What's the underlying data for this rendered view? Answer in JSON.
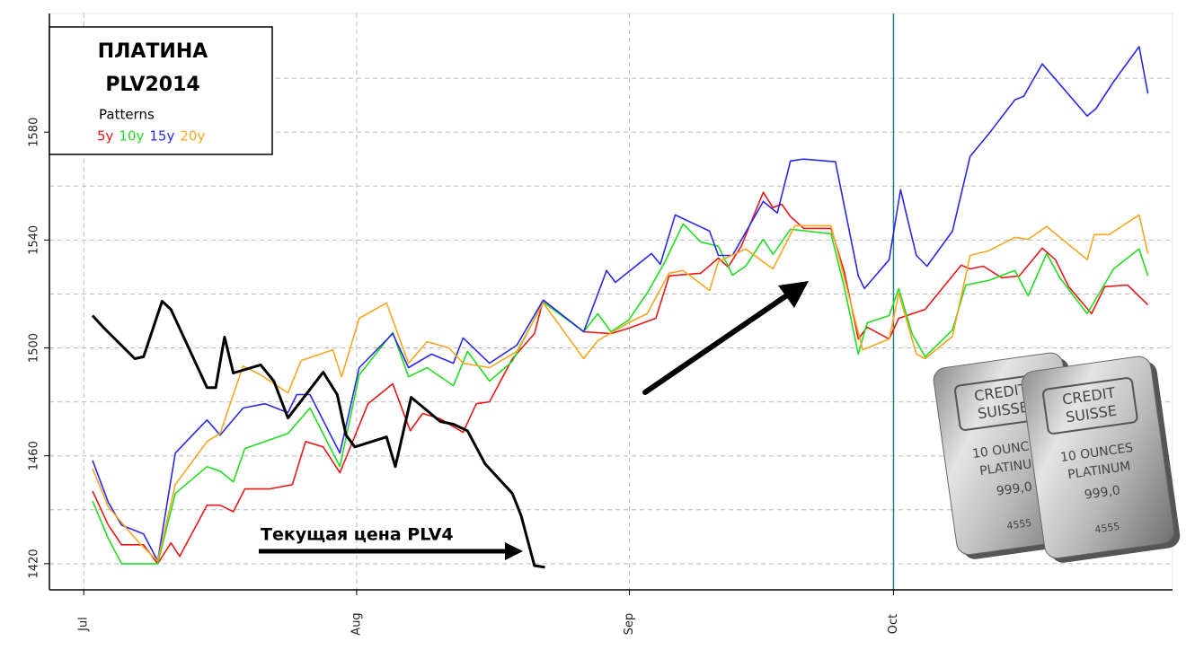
{
  "chart_data": {
    "type": "line",
    "title": "ПЛАТИНА",
    "subtitle": "PLV2014",
    "legend_title": "Patterns",
    "annotation": "Текущая цена PLV4",
    "xlim": [
      -3.9,
      123.7
    ],
    "ylim": [
      1410.3,
      1624
    ],
    "xticks": [
      {
        "value": 0,
        "label": "Jul"
      },
      {
        "value": 31,
        "label": "Aug"
      },
      {
        "value": 62,
        "label": "Sep"
      },
      {
        "value": 92,
        "label": "Oct"
      }
    ],
    "yticks": [
      1420,
      1460,
      1500,
      1540,
      1580
    ],
    "minor_yticks": [
      1440,
      1480,
      1520,
      1560,
      1600
    ],
    "grid": true,
    "vline": {
      "x": 92,
      "color": "#2a7f7f"
    },
    "image_texts": [
      "CREDIT",
      "SUISSE",
      "10 OUNCES",
      "PLATINUM",
      "999,0",
      "4555"
    ],
    "series": [
      {
        "name": "5y",
        "color": "#e81818",
        "x": [
          1.0,
          2.8,
          4.3,
          6.8,
          8.4,
          9.9,
          10.9,
          14.0,
          15.5,
          17.0,
          18.3,
          21.1,
          23.7,
          25.2,
          27.2,
          29.1,
          32.3,
          35.1,
          37.1,
          38.5,
          40.5,
          43.1,
          44.6,
          46.1,
          48.7,
          51.2,
          52.2,
          56.8,
          59.9,
          61.9,
          65.0,
          66.5,
          70.1,
          72.1,
          73.2,
          74.7,
          77.2,
          78.3,
          79.3,
          80.3,
          81.8,
          84.9,
          86.4,
          88.0,
          89.0,
          91.5,
          92.6,
          95.6,
          97.7,
          99.7,
          100.7,
          102.2,
          104.3,
          106.3,
          108.9,
          110.4,
          111.9,
          114.5,
          116.0,
          118.6,
          120.9
        ],
        "values": [
          1446.9,
          1434.3,
          1427,
          1427,
          1420,
          1427.7,
          1422.7,
          1441.7,
          1441.7,
          1439.3,
          1447.7,
          1447.7,
          1449.3,
          1465.3,
          1463.3,
          1453.7,
          1479.3,
          1486.7,
          1469.3,
          1475.7,
          1473.7,
          1468.7,
          1479.3,
          1480,
          1496,
          1505.3,
          1517.7,
          1506,
          1505.3,
          1507.3,
          1511,
          1526.7,
          1527.7,
          1533.3,
          1530,
          1537.7,
          1557.7,
          1552,
          1553.3,
          1548.7,
          1544.3,
          1544.3,
          1528.3,
          1503.3,
          1507.7,
          1503.3,
          1511,
          1514.3,
          1522.7,
          1530.7,
          1529.3,
          1530.3,
          1526,
          1526.7,
          1537,
          1532.7,
          1522.7,
          1512.7,
          1522.7,
          1523.3,
          1516
        ]
      },
      {
        "name": "10y",
        "color": "#22dd22",
        "x": [
          1.0,
          2.8,
          4.3,
          8.4,
          10.4,
          14.0,
          15.5,
          17.0,
          18.3,
          20.6,
          23.2,
          25.7,
          29.1,
          31.3,
          35.1,
          36.9,
          39.0,
          42.0,
          43.6,
          46.1,
          48.7,
          52.2,
          56.8,
          58.4,
          59.9,
          61.9,
          64.0,
          66.0,
          68.1,
          70.1,
          72.1,
          73.7,
          75.2,
          77.2,
          78.3,
          80.3,
          84.9,
          86.4,
          88.0,
          89.0,
          91.5,
          92.6,
          94.1,
          95.6,
          98.7,
          100.2,
          102.8,
          105.8,
          107.3,
          109.4,
          110.9,
          114.0,
          117.0,
          119.9,
          120.9
        ],
        "values": [
          1443.3,
          1429.3,
          1420,
          1420,
          1446,
          1456,
          1454.3,
          1450.3,
          1462.7,
          1465.3,
          1468.3,
          1477.7,
          1456,
          1490,
          1505.7,
          1489.3,
          1492.7,
          1486,
          1498.7,
          1487.7,
          1495,
          1517,
          1506,
          1512.7,
          1506,
          1510.3,
          1520.3,
          1531.7,
          1546,
          1539.3,
          1537.7,
          1527,
          1530.3,
          1540.3,
          1534.7,
          1544,
          1542.3,
          1522.7,
          1497.7,
          1509.3,
          1512,
          1522,
          1505.3,
          1496.7,
          1506.7,
          1523.3,
          1525,
          1528.7,
          1519.3,
          1535,
          1526,
          1512.7,
          1529.3,
          1536.7,
          1526.7
        ]
      },
      {
        "name": "15y",
        "color": "#2828ee",
        "x": [
          1.0,
          2.8,
          4.3,
          6.8,
          8.4,
          10.4,
          14.0,
          15.5,
          18.1,
          20.6,
          23.2,
          24.2,
          25.7,
          29.1,
          31.3,
          35.1,
          36.9,
          39.5,
          42.0,
          43.1,
          46.1,
          49.2,
          52.2,
          56.8,
          59.4,
          60.4,
          64.5,
          65.5,
          67.2,
          71.1,
          72.1,
          73.7,
          77.2,
          78.8,
          80.3,
          81.8,
          85.4,
          88.0,
          88.7,
          91.5,
          92.8,
          93.6,
          94.6,
          95.8,
          98.7,
          100.7,
          102.8,
          105.8,
          106.8,
          108.9,
          114.0,
          115.0,
          117.0,
          119.9,
          120.9
        ],
        "values": [
          1458.3,
          1442.7,
          1434.3,
          1431,
          1421,
          1461,
          1473.3,
          1467.7,
          1477.7,
          1479.3,
          1476,
          1482.7,
          1482.7,
          1461,
          1492.7,
          1505.3,
          1492.7,
          1497.7,
          1494.3,
          1503.7,
          1494.3,
          1501,
          1517.7,
          1506,
          1528.7,
          1524.3,
          1535,
          1531,
          1549.3,
          1543.3,
          1534.3,
          1534.3,
          1554.3,
          1550,
          1569.3,
          1570,
          1569,
          1526.7,
          1522,
          1532.7,
          1558.7,
          1547.7,
          1534.3,
          1530.3,
          1543.3,
          1571,
          1579.3,
          1592,
          1593.3,
          1605.3,
          1586,
          1588.7,
          1598.7,
          1611.7,
          1594.3
        ]
      },
      {
        "name": "20y",
        "color": "#f5a623",
        "x": [
          1.0,
          2.8,
          6.3,
          8.4,
          10.4,
          14.0,
          15.5,
          18.1,
          20.1,
          23.2,
          24.7,
          28.3,
          29.3,
          31.3,
          34.4,
          36.9,
          39.0,
          41.5,
          43.1,
          46.1,
          49.2,
          52.2,
          56.8,
          58.4,
          61.9,
          64.0,
          66.5,
          68.1,
          71.1,
          72.1,
          75.2,
          78.3,
          80.8,
          84.9,
          86.4,
          88.5,
          91.5,
          92.6,
          94.6,
          95.6,
          98.7,
          100.7,
          102.8,
          105.8,
          107.3,
          109.4,
          114.0,
          114.8,
          116.5,
          119.9,
          120.9
        ],
        "values": [
          1455.3,
          1441,
          1427.7,
          1421,
          1449.3,
          1465.3,
          1468.3,
          1493.3,
          1490,
          1483.3,
          1495.3,
          1499.3,
          1489.3,
          1511,
          1516.7,
          1494.3,
          1502.3,
          1500,
          1494.3,
          1492.7,
          1498.7,
          1516.7,
          1496,
          1502.7,
          1509.3,
          1512.7,
          1527.7,
          1528.7,
          1521.3,
          1532,
          1536.7,
          1529.3,
          1545.3,
          1545.3,
          1526,
          1499.3,
          1503.3,
          1520.3,
          1497.7,
          1496,
          1504.3,
          1534.3,
          1536,
          1541,
          1540.3,
          1545,
          1532.7,
          1542,
          1542,
          1549.3,
          1535
        ]
      },
      {
        "color": "#000000",
        "width": 3,
        "x": [
          1.0,
          2.2,
          5.8,
          6.8,
          8.9,
          9.9,
          14.0,
          15.0,
          16.0,
          17.0,
          20.1,
          21.6,
          23.2,
          27.2,
          28.8,
          29.8,
          30.8,
          34.4,
          35.4,
          37.2,
          40.5,
          42.0,
          43.6,
          45.6,
          48.7,
          49.7,
          51.2,
          52.4
        ],
        "values": [
          1512,
          1507.7,
          1496,
          1496.7,
          1517.3,
          1514.3,
          1485.3,
          1485.3,
          1504,
          1490.7,
          1493.7,
          1487.7,
          1474,
          1491,
          1482.7,
          1467.7,
          1463.3,
          1467,
          1456,
          1481.7,
          1472.7,
          1471.7,
          1469.3,
          1457,
          1446,
          1437.7,
          1419.3,
          1418.7
        ]
      }
    ]
  }
}
